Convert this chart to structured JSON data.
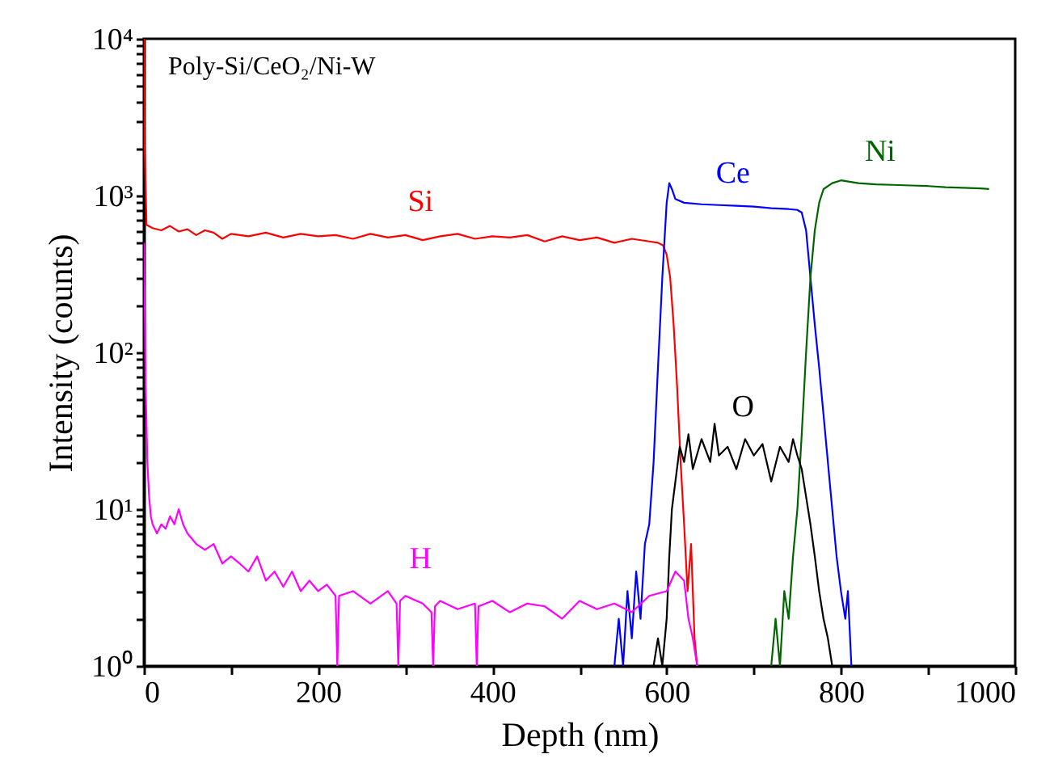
{
  "chart_data": {
    "type": "line",
    "title": "Poly-Si/CeO₂/Ni-W",
    "xlabel": "Depth (nm)",
    "ylabel": "Intensity (counts)",
    "log": "y",
    "xlim": [
      0,
      1000
    ],
    "xticks": [
      0,
      {
        "value": 100,
        "label": null
      },
      200,
      {
        "value": 300,
        "label": null
      },
      400,
      {
        "value": 500,
        "label": null
      },
      600,
      {
        "value": 700,
        "label": null
      },
      800,
      {
        "value": 900,
        "label": null
      },
      1000
    ],
    "ylim": [
      1,
      10000
    ],
    "yticks": [
      {
        "value": 1,
        "label": "10⁰"
      },
      {
        "value": 2,
        "label": null
      },
      {
        "value": 3,
        "label": null
      },
      {
        "value": 4,
        "label": null
      },
      {
        "value": 5,
        "label": null
      },
      {
        "value": 6,
        "label": null
      },
      {
        "value": 7,
        "label": null
      },
      {
        "value": 8,
        "label": null
      },
      {
        "value": 9,
        "label": null
      },
      {
        "value": 10,
        "label": "10¹"
      },
      {
        "value": 20,
        "label": null
      },
      {
        "value": 30,
        "label": null
      },
      {
        "value": 40,
        "label": null
      },
      {
        "value": 50,
        "label": null
      },
      {
        "value": 60,
        "label": null
      },
      {
        "value": 70,
        "label": null
      },
      {
        "value": 80,
        "label": null
      },
      {
        "value": 90,
        "label": null
      },
      {
        "value": 100,
        "label": "10²"
      },
      {
        "value": 200,
        "label": null
      },
      {
        "value": 300,
        "label": null
      },
      {
        "value": 400,
        "label": null
      },
      {
        "value": 500,
        "label": null
      },
      {
        "value": 600,
        "label": null
      },
      {
        "value": 700,
        "label": null
      },
      {
        "value": 800,
        "label": null
      },
      {
        "value": 900,
        "label": null
      },
      {
        "value": 1000,
        "label": "10³"
      },
      {
        "value": 2000,
        "label": null
      },
      {
        "value": 3000,
        "label": null
      },
      {
        "value": 4000,
        "label": null
      },
      {
        "value": 5000,
        "label": null
      },
      {
        "value": 6000,
        "label": null
      },
      {
        "value": 7000,
        "label": null
      },
      {
        "value": 8000,
        "label": null
      },
      {
        "value": 9000,
        "label": null
      },
      {
        "value": 10000,
        "label": "10⁴"
      }
    ],
    "series": [
      {
        "name": "Si",
        "color": "#ff0000",
        "x": [
          0,
          1,
          3,
          10,
          20,
          30,
          40,
          50,
          60,
          70,
          80,
          90,
          100,
          120,
          140,
          160,
          180,
          200,
          220,
          240,
          260,
          280,
          300,
          320,
          340,
          360,
          380,
          400,
          420,
          440,
          460,
          480,
          500,
          520,
          540,
          560,
          580,
          590,
          596,
          600,
          604,
          608,
          612,
          616,
          620,
          624,
          628,
          632,
          635
        ],
        "values": [
          10000,
          2000,
          650,
          620,
          600,
          640,
          590,
          610,
          560,
          600,
          580,
          530,
          570,
          550,
          580,
          540,
          570,
          550,
          560,
          530,
          570,
          540,
          560,
          520,
          550,
          570,
          530,
          550,
          540,
          560,
          510,
          550,
          520,
          540,
          500,
          530,
          510,
          500,
          480,
          420,
          300,
          150,
          60,
          20,
          8,
          3,
          6,
          1.5,
          1
        ]
      },
      {
        "name": "Ce",
        "color": "#0000ff",
        "x": [
          540,
          545,
          550,
          555,
          560,
          565,
          570,
          575,
          580,
          585,
          590,
          595,
          600,
          603,
          606,
          610,
          620,
          640,
          660,
          680,
          700,
          720,
          740,
          750,
          755,
          760,
          765,
          770,
          775,
          780,
          785,
          790,
          795,
          800,
          805,
          808,
          812
        ],
        "values": [
          1,
          2,
          1,
          3,
          1.5,
          4,
          2,
          6,
          8,
          20,
          80,
          300,
          900,
          1200,
          1100,
          950,
          900,
          880,
          870,
          860,
          850,
          830,
          820,
          810,
          780,
          600,
          300,
          150,
          80,
          40,
          20,
          10,
          5,
          3,
          2,
          3,
          1
        ]
      },
      {
        "name": "Ni",
        "color": "#006400",
        "x": [
          720,
          725,
          730,
          735,
          740,
          745,
          750,
          755,
          760,
          765,
          770,
          775,
          780,
          790,
          800,
          820,
          840,
          860,
          880,
          900,
          920,
          940,
          960,
          970
        ],
        "values": [
          1,
          2,
          1,
          3,
          2,
          5,
          10,
          30,
          100,
          300,
          600,
          900,
          1100,
          1200,
          1250,
          1200,
          1180,
          1170,
          1160,
          1150,
          1130,
          1120,
          1110,
          1100
        ]
      },
      {
        "name": "O",
        "color": "#000000",
        "x": [
          585,
          590,
          595,
          600,
          603,
          606,
          610,
          615,
          620,
          625,
          630,
          640,
          650,
          655,
          660,
          670,
          680,
          690,
          700,
          710,
          720,
          730,
          740,
          745,
          750,
          755,
          760,
          765,
          770,
          775,
          780,
          785,
          790
        ],
        "values": [
          1,
          1.5,
          1,
          2,
          5,
          10,
          15,
          25,
          20,
          30,
          18,
          28,
          20,
          35,
          22,
          25,
          18,
          28,
          22,
          26,
          15,
          25,
          20,
          28,
          22,
          18,
          12,
          8,
          5,
          3,
          2,
          1.5,
          1
        ]
      },
      {
        "name": "H",
        "color": "#ff00ff",
        "x": [
          0,
          1,
          2,
          4,
          6,
          8,
          10,
          15,
          20,
          25,
          30,
          35,
          40,
          45,
          50,
          60,
          70,
          80,
          90,
          100,
          110,
          120,
          130,
          140,
          150,
          160,
          170,
          180,
          190,
          200,
          210,
          220,
          222,
          224,
          240,
          260,
          280,
          290,
          292,
          294,
          300,
          320,
          330,
          332,
          334,
          340,
          360,
          380,
          382,
          384,
          400,
          420,
          440,
          460,
          480,
          500,
          520,
          540,
          560,
          580,
          600,
          610,
          620,
          625,
          630,
          635
        ],
        "values": [
          500,
          200,
          60,
          20,
          12,
          9,
          8,
          7,
          8,
          7.5,
          9,
          8,
          10,
          8,
          7,
          6,
          5.5,
          6,
          4.5,
          5,
          4.5,
          4,
          5,
          3.5,
          4,
          3.2,
          4,
          3,
          3.5,
          3,
          3.3,
          2.8,
          1,
          2.8,
          3,
          2.5,
          3,
          2.5,
          1,
          2.6,
          2.8,
          2.5,
          2.2,
          1,
          2.4,
          2.6,
          2.3,
          2.5,
          1,
          2.4,
          2.6,
          2.2,
          2.5,
          2.4,
          2,
          2.6,
          2.3,
          2.5,
          2.2,
          2.8,
          3,
          4,
          3.5,
          2,
          1.5,
          1
        ]
      }
    ]
  }
}
